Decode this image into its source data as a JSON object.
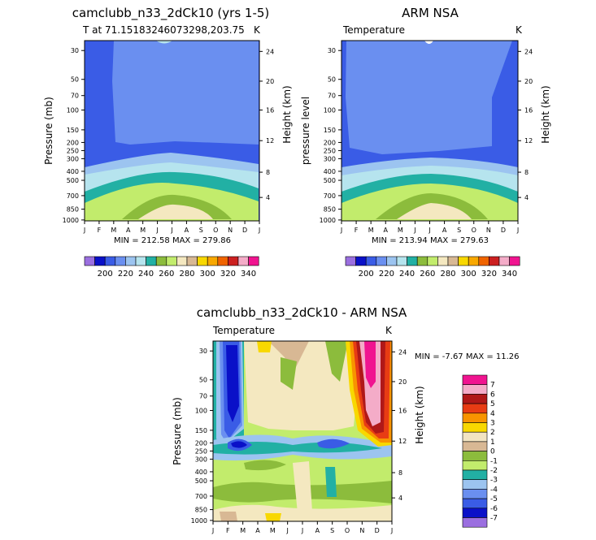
{
  "figure": {
    "months": [
      "J",
      "F",
      "M",
      "A",
      "M",
      "J",
      "J",
      "A",
      "S",
      "O",
      "N",
      "D",
      "J"
    ],
    "pressure_ticks": [
      "30",
      "50",
      "70",
      "100",
      "150",
      "200",
      "250",
      "300",
      "400",
      "500",
      "700",
      "850",
      "1000"
    ],
    "height_ticks": [
      "24",
      "20",
      "16",
      "12",
      "8",
      "4"
    ],
    "pressure_label": "Pressure (mb)",
    "pressure_level_label": "pressure level",
    "height_label": "Height (km)"
  },
  "chart_data": [
    {
      "type": "heatmap",
      "title": "camclubb_n33_2dCk10 (yrs 1-5)",
      "subtitle": "T at 71.15183246073298,203.75",
      "corner_label": "K",
      "xlabel": "",
      "ylabel": "Pressure (mb)",
      "y2label": "Height (km)",
      "stats": "MIN = 212.58  MAX = 279.86",
      "colorbar_labels": [
        "200",
        "220",
        "240",
        "260",
        "280",
        "300",
        "320",
        "340"
      ]
    },
    {
      "type": "heatmap",
      "title": "ARM NSA",
      "subtitle": "Temperature",
      "corner_label": "K",
      "ylabel": "pressure level",
      "y2label": "Height (km)",
      "stats": "MIN = 213.94  MAX = 279.63",
      "colorbar_labels": [
        "200",
        "220",
        "240",
        "260",
        "280",
        "300",
        "320",
        "340"
      ]
    },
    {
      "type": "heatmap",
      "title": "camclubb_n33_2dCk10 - ARM NSA",
      "subtitle": "Temperature",
      "corner_label": "K",
      "ylabel": "Pressure (mb)",
      "y2label": "Height (km)",
      "stats": "MIN =   -7.67 MAX =   11.26",
      "colorbar_labels": [
        "7",
        "6",
        "5",
        "4",
        "3",
        "2",
        "1",
        "0",
        "-1",
        "-2",
        "-3",
        "-4",
        "-5",
        "-6",
        "-7"
      ]
    }
  ],
  "colors": {
    "temp_scale": [
      "#9b6fe0",
      "#0a10c8",
      "#3a5ce6",
      "#6a8ff0",
      "#9cc4f0",
      "#b6e4ee",
      "#22b0a4",
      "#8cbc3c",
      "#c2ec6c",
      "#f4e8c0",
      "#d8b894",
      "#f8d800",
      "#f8a800",
      "#f06400",
      "#cc2020",
      "#f4acc8",
      "#f01490"
    ],
    "diff_scale": [
      "#f01490",
      "#f4acc8",
      "#b01818",
      "#e83c14",
      "#f89400",
      "#f8d800",
      "#f2e4c2",
      "#d8b894",
      "#8cbc3c",
      "#c2ec6c",
      "#22b0a4",
      "#9cc4f0",
      "#6a8ff0",
      "#3a5ce6",
      "#0a10c8",
      "#9b6fe0"
    ]
  }
}
